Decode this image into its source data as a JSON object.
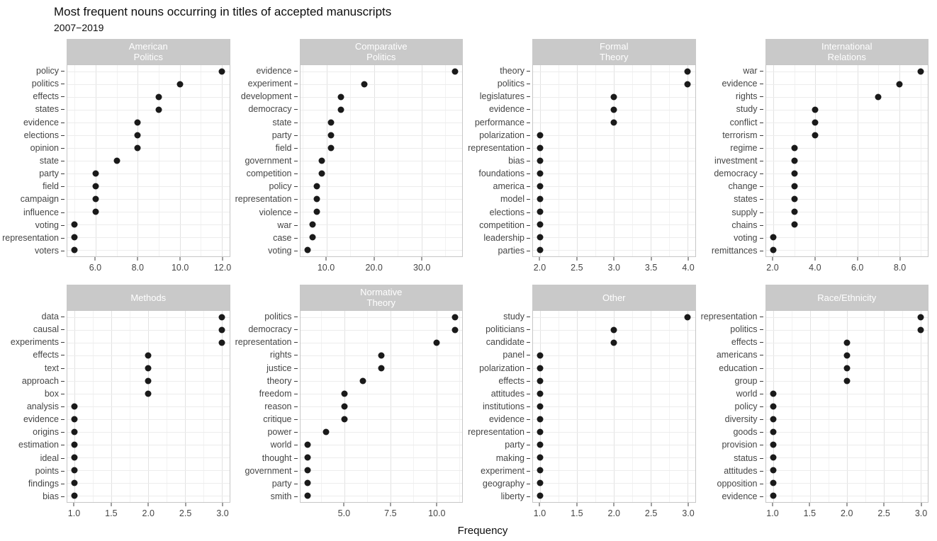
{
  "header": {
    "title": "Most frequent nouns occurring in titles of accepted manuscripts",
    "subtitle": "2007−2019"
  },
  "xlabel": "Frequency",
  "colors": {
    "strip_bg": "#c9c9c9",
    "strip_text": "#ffffff",
    "dot": "#1a1a1a",
    "grid_major": "#e2e2e2",
    "grid_minor": "#f2f2f2",
    "panel_border": "#c6c6c6",
    "axis_text": "#454545"
  },
  "chart_data": {
    "type": "scatter",
    "variant": "cleveland-dot-plot",
    "title": "Most frequent nouns occurring in titles of accepted manuscripts",
    "subtitle": "2007−2019",
    "xlabel": "Frequency",
    "grid": true,
    "layout": {
      "rows": 2,
      "cols": 4,
      "free_x_scales": true,
      "free_y_labels": true
    },
    "facets": [
      {
        "title": "American Politics",
        "strip_lines": [
          "American",
          "Politics"
        ],
        "words": [
          "policy",
          "politics",
          "effects",
          "states",
          "evidence",
          "elections",
          "opinion",
          "state",
          "party",
          "field",
          "campaign",
          "influence",
          "voting",
          "representation",
          "voters"
        ],
        "values": [
          12,
          10,
          9,
          9,
          8,
          8,
          8,
          7,
          6,
          6,
          6,
          6,
          5,
          5,
          5
        ],
        "domain": [
          4.65,
          12.35
        ],
        "ticks": [
          {
            "v": 6,
            "label": "6.0"
          },
          {
            "v": 8,
            "label": "8.0"
          },
          {
            "v": 10,
            "label": "10.0"
          },
          {
            "v": 12,
            "label": "12.0"
          }
        ],
        "minor_ticks": [
          5,
          7,
          9,
          11
        ]
      },
      {
        "title": "Comparative Politics",
        "strip_lines": [
          "Comparative",
          "Politics"
        ],
        "words": [
          "evidence",
          "experiment",
          "development",
          "democracy",
          "state",
          "party",
          "field",
          "government",
          "competition",
          "policy",
          "representation",
          "violence",
          "war",
          "case",
          "voting"
        ],
        "values": [
          37,
          18,
          13,
          13,
          11,
          11,
          11,
          9,
          9,
          8,
          8,
          8,
          7,
          7,
          6
        ],
        "domain": [
          4.45,
          38.55
        ],
        "ticks": [
          {
            "v": 10,
            "label": "10.0"
          },
          {
            "v": 20,
            "label": "20.0"
          },
          {
            "v": 30,
            "label": "30.0"
          }
        ],
        "minor_ticks": [
          5,
          15,
          25,
          35
        ]
      },
      {
        "title": "Formal Theory",
        "strip_lines": [
          "Formal",
          "Theory"
        ],
        "words": [
          "theory",
          "politics",
          "legislatures",
          "evidence",
          "performance",
          "polarization",
          "representation",
          "bias",
          "foundations",
          "america",
          "model",
          "elections",
          "competition",
          "leadership",
          "parties"
        ],
        "values": [
          4,
          4,
          3,
          3,
          3,
          2,
          2,
          2,
          2,
          2,
          2,
          2,
          2,
          2,
          2
        ],
        "domain": [
          1.9,
          4.1
        ],
        "ticks": [
          {
            "v": 2,
            "label": "2.0"
          },
          {
            "v": 2.5,
            "label": "2.5"
          },
          {
            "v": 3,
            "label": "3.0"
          },
          {
            "v": 3.5,
            "label": "3.5"
          },
          {
            "v": 4,
            "label": "4.0"
          }
        ],
        "minor_ticks": [
          2.25,
          2.75,
          3.25,
          3.75
        ]
      },
      {
        "title": "International Relations",
        "strip_lines": [
          "International",
          "Relations"
        ],
        "words": [
          "war",
          "evidence",
          "rights",
          "study",
          "conflict",
          "terrorism",
          "regime",
          "investment",
          "democracy",
          "change",
          "states",
          "supply",
          "chains",
          "voting",
          "remittances"
        ],
        "values": [
          9,
          8,
          7,
          4,
          4,
          4,
          3,
          3,
          3,
          3,
          3,
          3,
          3,
          2,
          2
        ],
        "domain": [
          1.65,
          9.35
        ],
        "ticks": [
          {
            "v": 2,
            "label": "2.0"
          },
          {
            "v": 4,
            "label": "4.0"
          },
          {
            "v": 6,
            "label": "6.0"
          },
          {
            "v": 8,
            "label": "8.0"
          }
        ],
        "minor_ticks": [
          3,
          5,
          7,
          9
        ]
      },
      {
        "title": "Methods",
        "strip_lines": [
          "Methods"
        ],
        "words": [
          "data",
          "causal",
          "experiments",
          "effects",
          "text",
          "approach",
          "box",
          "analysis",
          "evidence",
          "origins",
          "estimation",
          "ideal",
          "points",
          "findings",
          "bias"
        ],
        "values": [
          3,
          3,
          3,
          2,
          2,
          2,
          2,
          1,
          1,
          1,
          1,
          1,
          1,
          1,
          1
        ],
        "domain": [
          0.9,
          3.1
        ],
        "ticks": [
          {
            "v": 1,
            "label": "1.0"
          },
          {
            "v": 1.5,
            "label": "1.5"
          },
          {
            "v": 2,
            "label": "2.0"
          },
          {
            "v": 2.5,
            "label": "2.5"
          },
          {
            "v": 3,
            "label": "3.0"
          }
        ],
        "minor_ticks": [
          1.25,
          1.75,
          2.25,
          2.75
        ]
      },
      {
        "title": "Normative Theory",
        "strip_lines": [
          "Normative",
          "Theory"
        ],
        "words": [
          "politics",
          "democracy",
          "representation",
          "rights",
          "justice",
          "theory",
          "freedom",
          "reason",
          "critique",
          "power",
          "world",
          "thought",
          "government",
          "party",
          "smith"
        ],
        "values": [
          11,
          11,
          10,
          7,
          7,
          6,
          5,
          5,
          5,
          4,
          3,
          3,
          3,
          3,
          3
        ],
        "domain": [
          2.6,
          11.4
        ],
        "ticks": [
          {
            "v": 5,
            "label": "5.0"
          },
          {
            "v": 7.5,
            "label": "7.5"
          },
          {
            "v": 10,
            "label": "10.0"
          }
        ],
        "minor_ticks": [
          3.75,
          6.25,
          8.75,
          11.25
        ]
      },
      {
        "title": "Other",
        "strip_lines": [
          "Other"
        ],
        "words": [
          "study",
          "politicians",
          "candidate",
          "panel",
          "polarization",
          "effects",
          "attitudes",
          "institutions",
          "evidence",
          "representation",
          "party",
          "making",
          "experiment",
          "geography",
          "liberty"
        ],
        "values": [
          3,
          2,
          2,
          1,
          1,
          1,
          1,
          1,
          1,
          1,
          1,
          1,
          1,
          1,
          1
        ],
        "domain": [
          0.9,
          3.1
        ],
        "ticks": [
          {
            "v": 1,
            "label": "1.0"
          },
          {
            "v": 1.5,
            "label": "1.5"
          },
          {
            "v": 2,
            "label": "2.0"
          },
          {
            "v": 2.5,
            "label": "2.5"
          },
          {
            "v": 3,
            "label": "3.0"
          }
        ],
        "minor_ticks": [
          1.25,
          1.75,
          2.25,
          2.75
        ]
      },
      {
        "title": "Race/Ethnicity",
        "strip_lines": [
          "Race/Ethnicity"
        ],
        "words": [
          "representation",
          "politics",
          "effects",
          "americans",
          "education",
          "group",
          "world",
          "policy",
          "diversity",
          "goods",
          "provision",
          "status",
          "attitudes",
          "opposition",
          "evidence"
        ],
        "values": [
          3,
          3,
          2,
          2,
          2,
          2,
          1,
          1,
          1,
          1,
          1,
          1,
          1,
          1,
          1
        ],
        "domain": [
          0.9,
          3.1
        ],
        "ticks": [
          {
            "v": 1,
            "label": "1.0"
          },
          {
            "v": 1.5,
            "label": "1.5"
          },
          {
            "v": 2,
            "label": "2.0"
          },
          {
            "v": 2.5,
            "label": "2.5"
          },
          {
            "v": 3,
            "label": "3.0"
          }
        ],
        "minor_ticks": [
          1.25,
          1.75,
          2.25,
          2.75
        ]
      }
    ]
  }
}
